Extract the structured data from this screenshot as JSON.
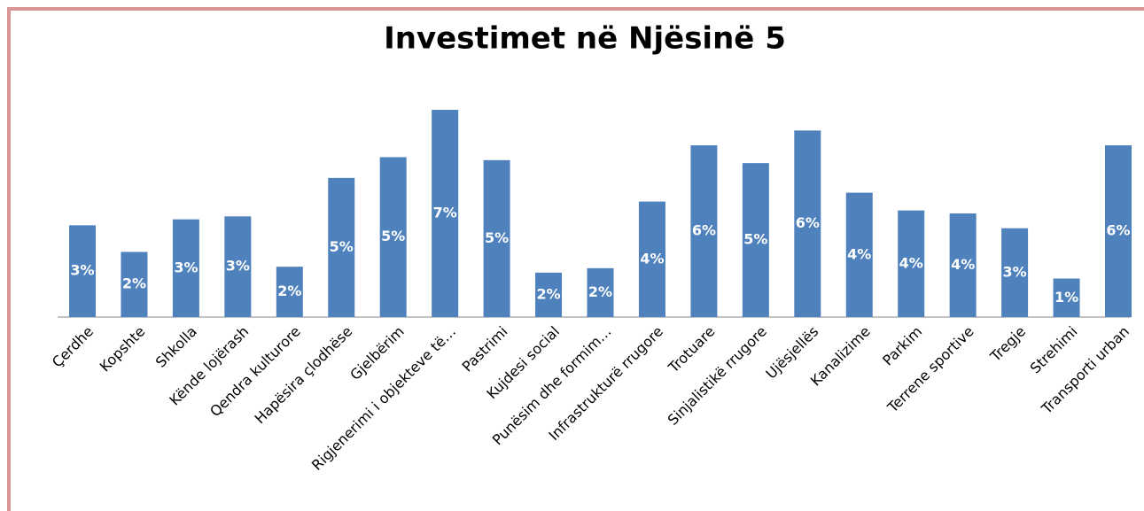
{
  "chart_data": {
    "type": "bar",
    "title": "Investimet në Njësinë 5",
    "categories": [
      "Çerdhe",
      "Kopshte",
      "Shkolla",
      "Kënde lojërash",
      "Qendra kulturore",
      "Hapësira çlodhëse",
      "Gjelbërim",
      "Rigjenerimi i objekteve të…",
      "Pastrimi",
      "Kujdesi social",
      "Punësim dhe formim…",
      "Infrastrukturë rrugore",
      "Trotuare",
      "Sinjalistikë rrugore",
      "Ujësjellës",
      "Kanalizime",
      "Parkim",
      "Terrene sportive",
      "Tregje",
      "Strehimi",
      "Transporti urban"
    ],
    "values": [
      3.1,
      2.2,
      3.3,
      3.4,
      1.7,
      4.7,
      5.4,
      7.0,
      5.3,
      1.5,
      1.65,
      3.9,
      5.8,
      5.2,
      6.3,
      4.2,
      3.6,
      3.5,
      3.0,
      1.3,
      5.8
    ],
    "value_labels": [
      "3%",
      "2%",
      "3%",
      "3%",
      "2%",
      "5%",
      "5%",
      "7%",
      "5%",
      "2%",
      "2%",
      "4%",
      "6%",
      "5%",
      "6%",
      "4%",
      "4%",
      "4%",
      "3%",
      "1%",
      "6%"
    ],
    "color": "#4f81bd",
    "ylim": [
      0,
      7.4
    ]
  }
}
